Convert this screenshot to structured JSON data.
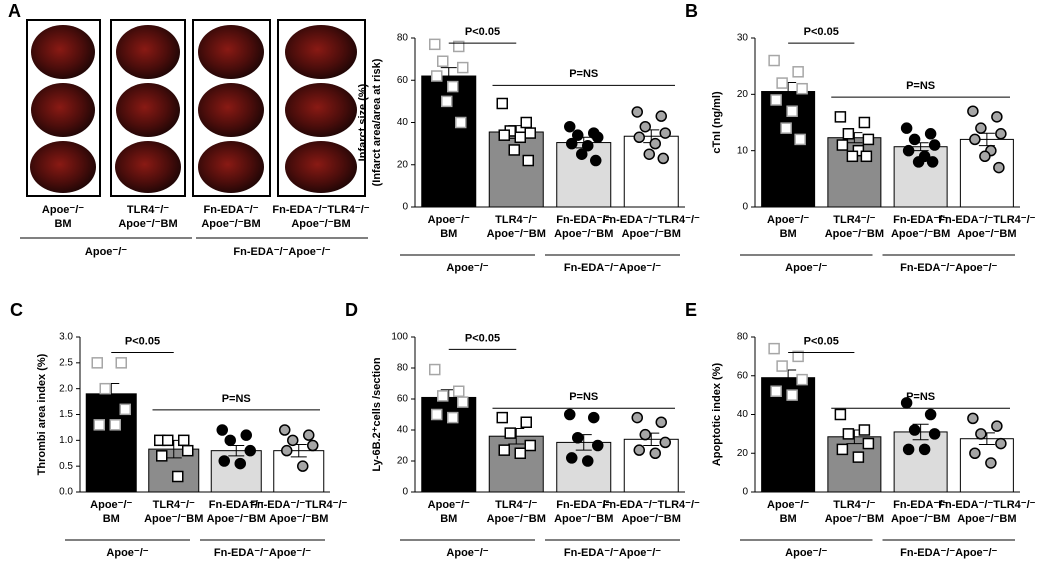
{
  "heart_images": {
    "panel": "A",
    "labels": [
      [
        "Apoe⁻/⁻",
        "BM"
      ],
      [
        "TLR4⁻/⁻",
        "Apoe⁻/⁻BM"
      ],
      [
        "Fn-EDA⁻/⁻",
        "Apoe⁻/⁻BM"
      ],
      [
        "Fn-EDA⁻/⁻TLR4⁻/⁻",
        "Apoe⁻/⁻BM"
      ]
    ],
    "groups": [
      "Apoe⁻/⁻",
      "Fn-EDA⁻/⁻Apoe⁻/⁻"
    ]
  },
  "chart_data": [
    {
      "type": "bar",
      "ylabel": [
        "Infarct size (%)",
        "(Infarct area/area at risk)"
      ],
      "categories": [
        [
          "Apoe⁻/⁻",
          "BM"
        ],
        [
          "TLR4⁻/⁻",
          "Apoe⁻/⁻BM"
        ],
        [
          "Fn-EDA⁻/⁻",
          "Apoe⁻/⁻BM"
        ],
        [
          "Fn-EDA⁻/⁻TLR4⁻/⁻",
          "Apoe⁻/⁻BM"
        ]
      ],
      "groups": [
        "Apoe⁻/⁻",
        "Fn-EDA⁻/⁻Apoe⁻/⁻"
      ],
      "annotations": [
        "P<0.05",
        "P=NS"
      ],
      "values": [
        62,
        35.5,
        30.5,
        33.5
      ],
      "errors": [
        4,
        3,
        2.5,
        3
      ],
      "points": [
        [
          77,
          76,
          69,
          66,
          62,
          57,
          50,
          40
        ],
        [
          49,
          40,
          36,
          35,
          34,
          33,
          27,
          22
        ],
        [
          38,
          35,
          34,
          33,
          30,
          29,
          25,
          22
        ],
        [
          45,
          43,
          38,
          35,
          33,
          30,
          25,
          23
        ]
      ],
      "colors": [
        "#000000",
        "#8c8c8c",
        "#dcdcdc",
        "#ffffff"
      ],
      "point_colors": [
        "#ffffff",
        "#ffffff",
        "#000000",
        "#a6a6a6"
      ],
      "point_edges": [
        "#a6a6a6",
        "#000000",
        "#000000",
        "#000000"
      ],
      "point_shapes": [
        "square",
        "square",
        "circle",
        "circle"
      ],
      "ylim": [
        0,
        80
      ],
      "yticks": [
        0,
        20,
        40,
        60,
        80
      ]
    },
    {
      "type": "bar",
      "panel": "B",
      "ylabel": [
        "cTnI (ng/ml)"
      ],
      "categories": [
        [
          "Apoe⁻/⁻",
          "BM"
        ],
        [
          "TLR4⁻/⁻",
          "Apoe⁻/⁻BM"
        ],
        [
          "Fn-EDA⁻/⁻",
          "Apoe⁻/⁻BM"
        ],
        [
          "Fn-EDA⁻/⁻TLR4⁻/⁻",
          "Apoe⁻/⁻BM"
        ]
      ],
      "groups": [
        "Apoe⁻/⁻",
        "Fn-EDA⁻/⁻Apoe⁻/⁻"
      ],
      "annotations": [
        "P<0.05",
        "P=NS"
      ],
      "values": [
        20.5,
        12.3,
        10.7,
        12
      ],
      "errors": [
        1.6,
        0.9,
        0.7,
        1.1
      ],
      "points": [
        [
          26,
          24,
          22,
          21,
          19,
          17,
          14,
          12
        ],
        [
          16,
          15,
          13,
          12,
          11,
          10,
          9,
          9
        ],
        [
          14,
          13,
          12,
          11,
          10,
          9,
          8,
          8
        ],
        [
          17,
          16,
          14,
          13,
          12,
          10,
          9,
          7
        ]
      ],
      "colors": [
        "#000000",
        "#8c8c8c",
        "#dcdcdc",
        "#ffffff"
      ],
      "point_colors": [
        "#ffffff",
        "#ffffff",
        "#000000",
        "#a6a6a6"
      ],
      "point_edges": [
        "#a6a6a6",
        "#000000",
        "#000000",
        "#000000"
      ],
      "point_shapes": [
        "square",
        "square",
        "circle",
        "circle"
      ],
      "ylim": [
        0,
        30
      ],
      "yticks": [
        0,
        10,
        20,
        30
      ]
    },
    {
      "type": "bar",
      "panel": "C",
      "ylabel": [
        "Thrombi area index (%)"
      ],
      "categories": [
        [
          "Apoe⁻/⁻",
          "BM"
        ],
        [
          "TLR4⁻/⁻",
          "Apoe⁻/⁻BM"
        ],
        [
          "Fn-EDA⁻/⁻",
          "Apoe⁻/⁻BM"
        ],
        [
          "Fn-EDA⁻/⁻TLR4⁻/⁻",
          "Apoe⁻/⁻BM"
        ]
      ],
      "groups": [
        "Apoe⁻/⁻",
        "Fn-EDA⁻/⁻Apoe⁻/⁻"
      ],
      "annotations": [
        "P<0.05",
        "P=NS"
      ],
      "values": [
        1.9,
        0.83,
        0.8,
        0.8
      ],
      "errors": [
        0.2,
        0.17,
        0.1,
        0.12
      ],
      "points": [
        [
          2.5,
          2.5,
          2.0,
          1.6,
          1.3,
          1.3
        ],
        [
          1.0,
          1.0,
          1.0,
          0.8,
          0.7,
          0.3
        ],
        [
          1.2,
          1.1,
          1.0,
          0.8,
          0.6,
          0.55
        ],
        [
          1.2,
          1.1,
          1.0,
          0.9,
          0.8,
          0.5
        ]
      ],
      "colors": [
        "#000000",
        "#8c8c8c",
        "#dcdcdc",
        "#ffffff"
      ],
      "point_colors": [
        "#ffffff",
        "#ffffff",
        "#000000",
        "#a6a6a6"
      ],
      "point_edges": [
        "#a6a6a6",
        "#000000",
        "#000000",
        "#000000"
      ],
      "point_shapes": [
        "square",
        "square",
        "circle",
        "circle"
      ],
      "ylim": [
        0,
        3
      ],
      "yticks": [
        {
          "value": 0,
          "label": "0.0"
        },
        0.5,
        {
          "value": 1,
          "label": "1.0"
        },
        1.5,
        {
          "value": 2,
          "label": "2.0"
        },
        2.5,
        {
          "value": 3,
          "label": "3.0"
        }
      ]
    },
    {
      "type": "bar",
      "panel": "D",
      "ylabel": [
        "Ly-6B.2⁺cells /section"
      ],
      "categories": [
        [
          "Apoe⁻/⁻",
          "BM"
        ],
        [
          "TLR4⁻/⁻",
          "Apoe⁻/⁻BM"
        ],
        [
          "Fn-EDA⁻/⁻",
          "Apoe⁻/⁻BM"
        ],
        [
          "Fn-EDA⁻/⁻TLR4⁻/⁻",
          "Apoe⁻/⁻BM"
        ]
      ],
      "groups": [
        "Apoe⁻/⁻",
        "Fn-EDA⁻/⁻Apoe⁻/⁻"
      ],
      "annotations": [
        "P<0.05",
        "P=NS"
      ],
      "values": [
        61,
        36,
        32,
        34
      ],
      "errors": [
        5,
        5,
        5,
        4
      ],
      "points": [
        [
          79,
          65,
          62,
          58,
          50,
          48
        ],
        [
          48,
          45,
          38,
          30,
          27,
          25
        ],
        [
          50,
          48,
          35,
          30,
          22,
          20
        ],
        [
          48,
          45,
          37,
          32,
          27,
          25
        ]
      ],
      "colors": [
        "#000000",
        "#8c8c8c",
        "#dcdcdc",
        "#ffffff"
      ],
      "point_colors": [
        "#ffffff",
        "#ffffff",
        "#000000",
        "#a6a6a6"
      ],
      "point_edges": [
        "#a6a6a6",
        "#000000",
        "#000000",
        "#000000"
      ],
      "point_shapes": [
        "square",
        "square",
        "circle",
        "circle"
      ],
      "ylim": [
        0,
        100
      ],
      "yticks": [
        0,
        20,
        40,
        60,
        80,
        100
      ]
    },
    {
      "type": "bar",
      "panel": "E",
      "ylabel": [
        "Apoptotic index (%)"
      ],
      "categories": [
        [
          "Apoe⁻/⁻",
          "BM"
        ],
        [
          "TLR4⁻/⁻",
          "Apoe⁻/⁻BM"
        ],
        [
          "Fn-EDA⁻/⁻",
          "Apoe⁻/⁻BM"
        ],
        [
          "Fn-EDA⁻/⁻TLR4⁻/⁻",
          "Apoe⁻/⁻BM"
        ]
      ],
      "groups": [
        "Apoe⁻/⁻",
        "Fn-EDA⁻/⁻Apoe⁻/⁻"
      ],
      "annotations": [
        "P<0.05",
        "P=NS"
      ],
      "values": [
        59,
        28.5,
        31,
        27.5
      ],
      "errors": [
        4,
        3.5,
        4,
        3
      ],
      "points": [
        [
          74,
          70,
          65,
          58,
          52,
          50
        ],
        [
          40,
          32,
          30,
          25,
          22,
          18
        ],
        [
          46,
          40,
          32,
          30,
          22,
          22
        ],
        [
          38,
          34,
          30,
          25,
          20,
          15
        ]
      ],
      "colors": [
        "#000000",
        "#8c8c8c",
        "#dcdcdc",
        "#ffffff"
      ],
      "point_colors": [
        "#ffffff",
        "#ffffff",
        "#000000",
        "#a6a6a6"
      ],
      "point_edges": [
        "#a6a6a6",
        "#000000",
        "#000000",
        "#000000"
      ],
      "point_shapes": [
        "square",
        "square",
        "circle",
        "circle"
      ],
      "ylim": [
        0,
        80
      ],
      "yticks": [
        0,
        20,
        40,
        60,
        80
      ]
    }
  ]
}
